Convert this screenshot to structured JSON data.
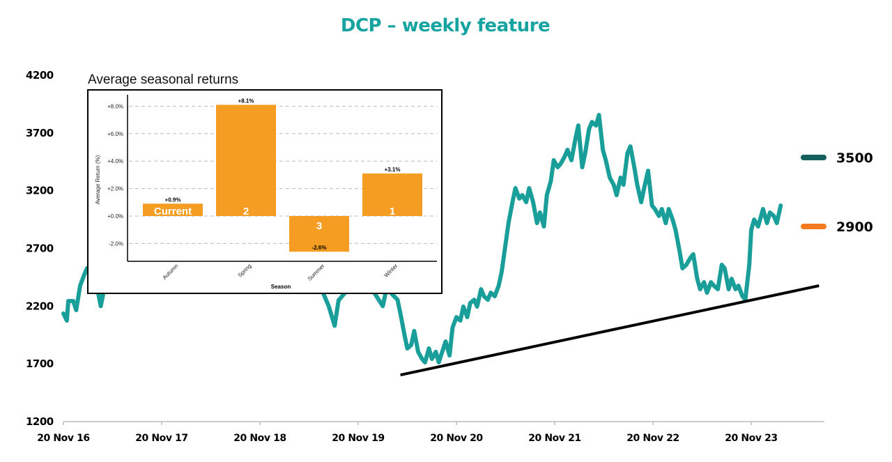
{
  "title": "DCP – weekly feature",
  "colors": {
    "price_line": "#1a9e9a",
    "trend_line": "#000000",
    "title": "#17a3a0",
    "level_3500": "#145e5b",
    "level_2900": "#f47c20",
    "bar": "#f59d22"
  },
  "legend": [
    {
      "label": "3500",
      "color": "#145e5b"
    },
    {
      "label": "2900",
      "color": "#f47c20"
    }
  ],
  "chart_data": [
    {
      "type": "line",
      "title": "DCP – weekly feature",
      "xlabel": "",
      "ylabel": "",
      "x_unit": "years since 20 Nov 16",
      "xlim": [
        0,
        7.75
      ],
      "ylim": [
        1200,
        4200
      ],
      "yticks": [
        "1200",
        "1700",
        "2200",
        "2700",
        "3200",
        "3700",
        "4200"
      ],
      "ytick_values": [
        1200,
        1700,
        2200,
        2700,
        3200,
        3700,
        4200
      ],
      "xticks": [
        "20 Nov 16",
        "20 Nov 17",
        "20 Nov 18",
        "20 Nov 19",
        "20 Nov 20",
        "20 Nov 21",
        "20 Nov 22",
        "20 Nov 23"
      ],
      "xtick_values": [
        0,
        1,
        2,
        3,
        4,
        5,
        6,
        7
      ],
      "series": [
        {
          "name": "DCP price",
          "points": [
            [
              0,
              2136
            ],
            [
              0.035,
              2075
            ],
            [
              0.05,
              2244
            ],
            [
              0.1,
              2244
            ],
            [
              0.13,
              2166
            ],
            [
              0.17,
              2377
            ],
            [
              0.21,
              2468
            ],
            [
              0.24,
              2528
            ],
            [
              0.3,
              2550
            ],
            [
              0.38,
              2200
            ],
            [
              0.45,
              2500
            ],
            [
              0.8,
              2700
            ],
            [
              1.5,
              2900
            ],
            [
              2.2,
              2700
            ],
            [
              2.6,
              2400
            ],
            [
              2.7,
              2200
            ],
            [
              2.76,
              2030
            ],
            [
              2.8,
              2250
            ],
            [
              2.9,
              2350
            ],
            [
              3.1,
              2400
            ],
            [
              3.25,
              2200
            ],
            [
              3.3,
              2400
            ],
            [
              3.33,
              2317
            ],
            [
              3.4,
              2256
            ],
            [
              3.43,
              2136
            ],
            [
              3.47,
              1955
            ],
            [
              3.5,
              1834
            ],
            [
              3.54,
              1864
            ],
            [
              3.57,
              1985
            ],
            [
              3.61,
              1804
            ],
            [
              3.65,
              1743
            ],
            [
              3.68,
              1713
            ],
            [
              3.72,
              1834
            ],
            [
              3.75,
              1743
            ],
            [
              3.79,
              1804
            ],
            [
              3.82,
              1713
            ],
            [
              3.89,
              1894
            ],
            [
              3.93,
              1773
            ],
            [
              3.96,
              2015
            ],
            [
              4.0,
              2105
            ],
            [
              4.04,
              2075
            ],
            [
              4.07,
              2196
            ],
            [
              4.11,
              2105
            ],
            [
              4.14,
              2226
            ],
            [
              4.18,
              2256
            ],
            [
              4.21,
              2196
            ],
            [
              4.25,
              2347
            ],
            [
              4.28,
              2286
            ],
            [
              4.32,
              2256
            ],
            [
              4.35,
              2317
            ],
            [
              4.39,
              2286
            ],
            [
              4.43,
              2377
            ],
            [
              4.46,
              2498
            ],
            [
              4.5,
              2739
            ],
            [
              4.53,
              2920
            ],
            [
              4.57,
              3101
            ],
            [
              4.6,
              3222
            ],
            [
              4.64,
              3132
            ],
            [
              4.67,
              3162
            ],
            [
              4.71,
              3101
            ],
            [
              4.74,
              3222
            ],
            [
              4.78,
              3101
            ],
            [
              4.82,
              2920
            ],
            [
              4.85,
              3011
            ],
            [
              4.89,
              2890
            ],
            [
              4.92,
              3162
            ],
            [
              4.96,
              3282
            ],
            [
              4.99,
              3464
            ],
            [
              5.03,
              3403
            ],
            [
              5.06,
              3433
            ],
            [
              5.1,
              3494
            ],
            [
              5.13,
              3554
            ],
            [
              5.17,
              3464
            ],
            [
              5.21,
              3645
            ],
            [
              5.24,
              3765
            ],
            [
              5.28,
              3403
            ],
            [
              5.31,
              3524
            ],
            [
              5.35,
              3735
            ],
            [
              5.38,
              3795
            ],
            [
              5.42,
              3765
            ],
            [
              5.45,
              3856
            ],
            [
              5.49,
              3554
            ],
            [
              5.52,
              3464
            ],
            [
              5.56,
              3313
            ],
            [
              5.6,
              3252
            ],
            [
              5.63,
              3162
            ],
            [
              5.67,
              3313
            ],
            [
              5.7,
              3252
            ],
            [
              5.74,
              3524
            ],
            [
              5.77,
              3584
            ],
            [
              5.81,
              3403
            ],
            [
              5.84,
              3252
            ],
            [
              5.88,
              3101
            ],
            [
              5.91,
              3222
            ],
            [
              5.95,
              3373
            ],
            [
              5.99,
              3071
            ],
            [
              6.02,
              3041
            ],
            [
              6.06,
              2981
            ],
            [
              6.09,
              3041
            ],
            [
              6.13,
              2920
            ],
            [
              6.16,
              3041
            ],
            [
              6.2,
              2950
            ],
            [
              6.23,
              2860
            ],
            [
              6.27,
              2679
            ],
            [
              6.3,
              2528
            ],
            [
              6.34,
              2558
            ],
            [
              6.38,
              2618
            ],
            [
              6.41,
              2649
            ],
            [
              6.45,
              2437
            ],
            [
              6.48,
              2347
            ],
            [
              6.52,
              2407
            ],
            [
              6.55,
              2317
            ],
            [
              6.59,
              2407
            ],
            [
              6.62,
              2377
            ],
            [
              6.66,
              2347
            ],
            [
              6.7,
              2558
            ],
            [
              6.73,
              2528
            ],
            [
              6.77,
              2347
            ],
            [
              6.8,
              2437
            ],
            [
              6.84,
              2347
            ],
            [
              6.87,
              2377
            ],
            [
              6.91,
              2286
            ],
            [
              6.94,
              2256
            ],
            [
              6.98,
              2558
            ],
            [
              7.0,
              2860
            ],
            [
              7.03,
              2950
            ],
            [
              7.07,
              2890
            ],
            [
              7.12,
              3041
            ],
            [
              7.16,
              2920
            ],
            [
              7.19,
              3011
            ],
            [
              7.23,
              2981
            ],
            [
              7.26,
              2920
            ],
            [
              7.3,
              3071
            ]
          ]
        },
        {
          "name": "Trend line",
          "points": [
            [
              3.43,
              1604
            ],
            [
              7.69,
              2377
            ]
          ]
        }
      ],
      "legend": {
        "entries": [
          "3500",
          "2900"
        ],
        "placement": "right"
      }
    },
    {
      "type": "bar",
      "title": "Average seasonal returns",
      "xlabel": "Season",
      "ylabel": "Average Return (%)",
      "categories": [
        "Autumn",
        "Spring",
        "Summer",
        "Winter"
      ],
      "values": [
        0.9,
        8.1,
        -2.6,
        3.1
      ],
      "value_labels": [
        "+0.9%",
        "+8.1%",
        "-2.6%",
        "+3.1%"
      ],
      "bar_labels": [
        "Current",
        "2",
        "3",
        "1"
      ],
      "ylim": [
        -3.3,
        8.6
      ],
      "yticks": [
        "-2.0%",
        "+0.0%",
        "+2.0%",
        "+4.0%",
        "+6.0%",
        "+8.0%"
      ],
      "ytick_values": [
        -2,
        0,
        2,
        4,
        6,
        8
      ],
      "grid": true
    }
  ]
}
